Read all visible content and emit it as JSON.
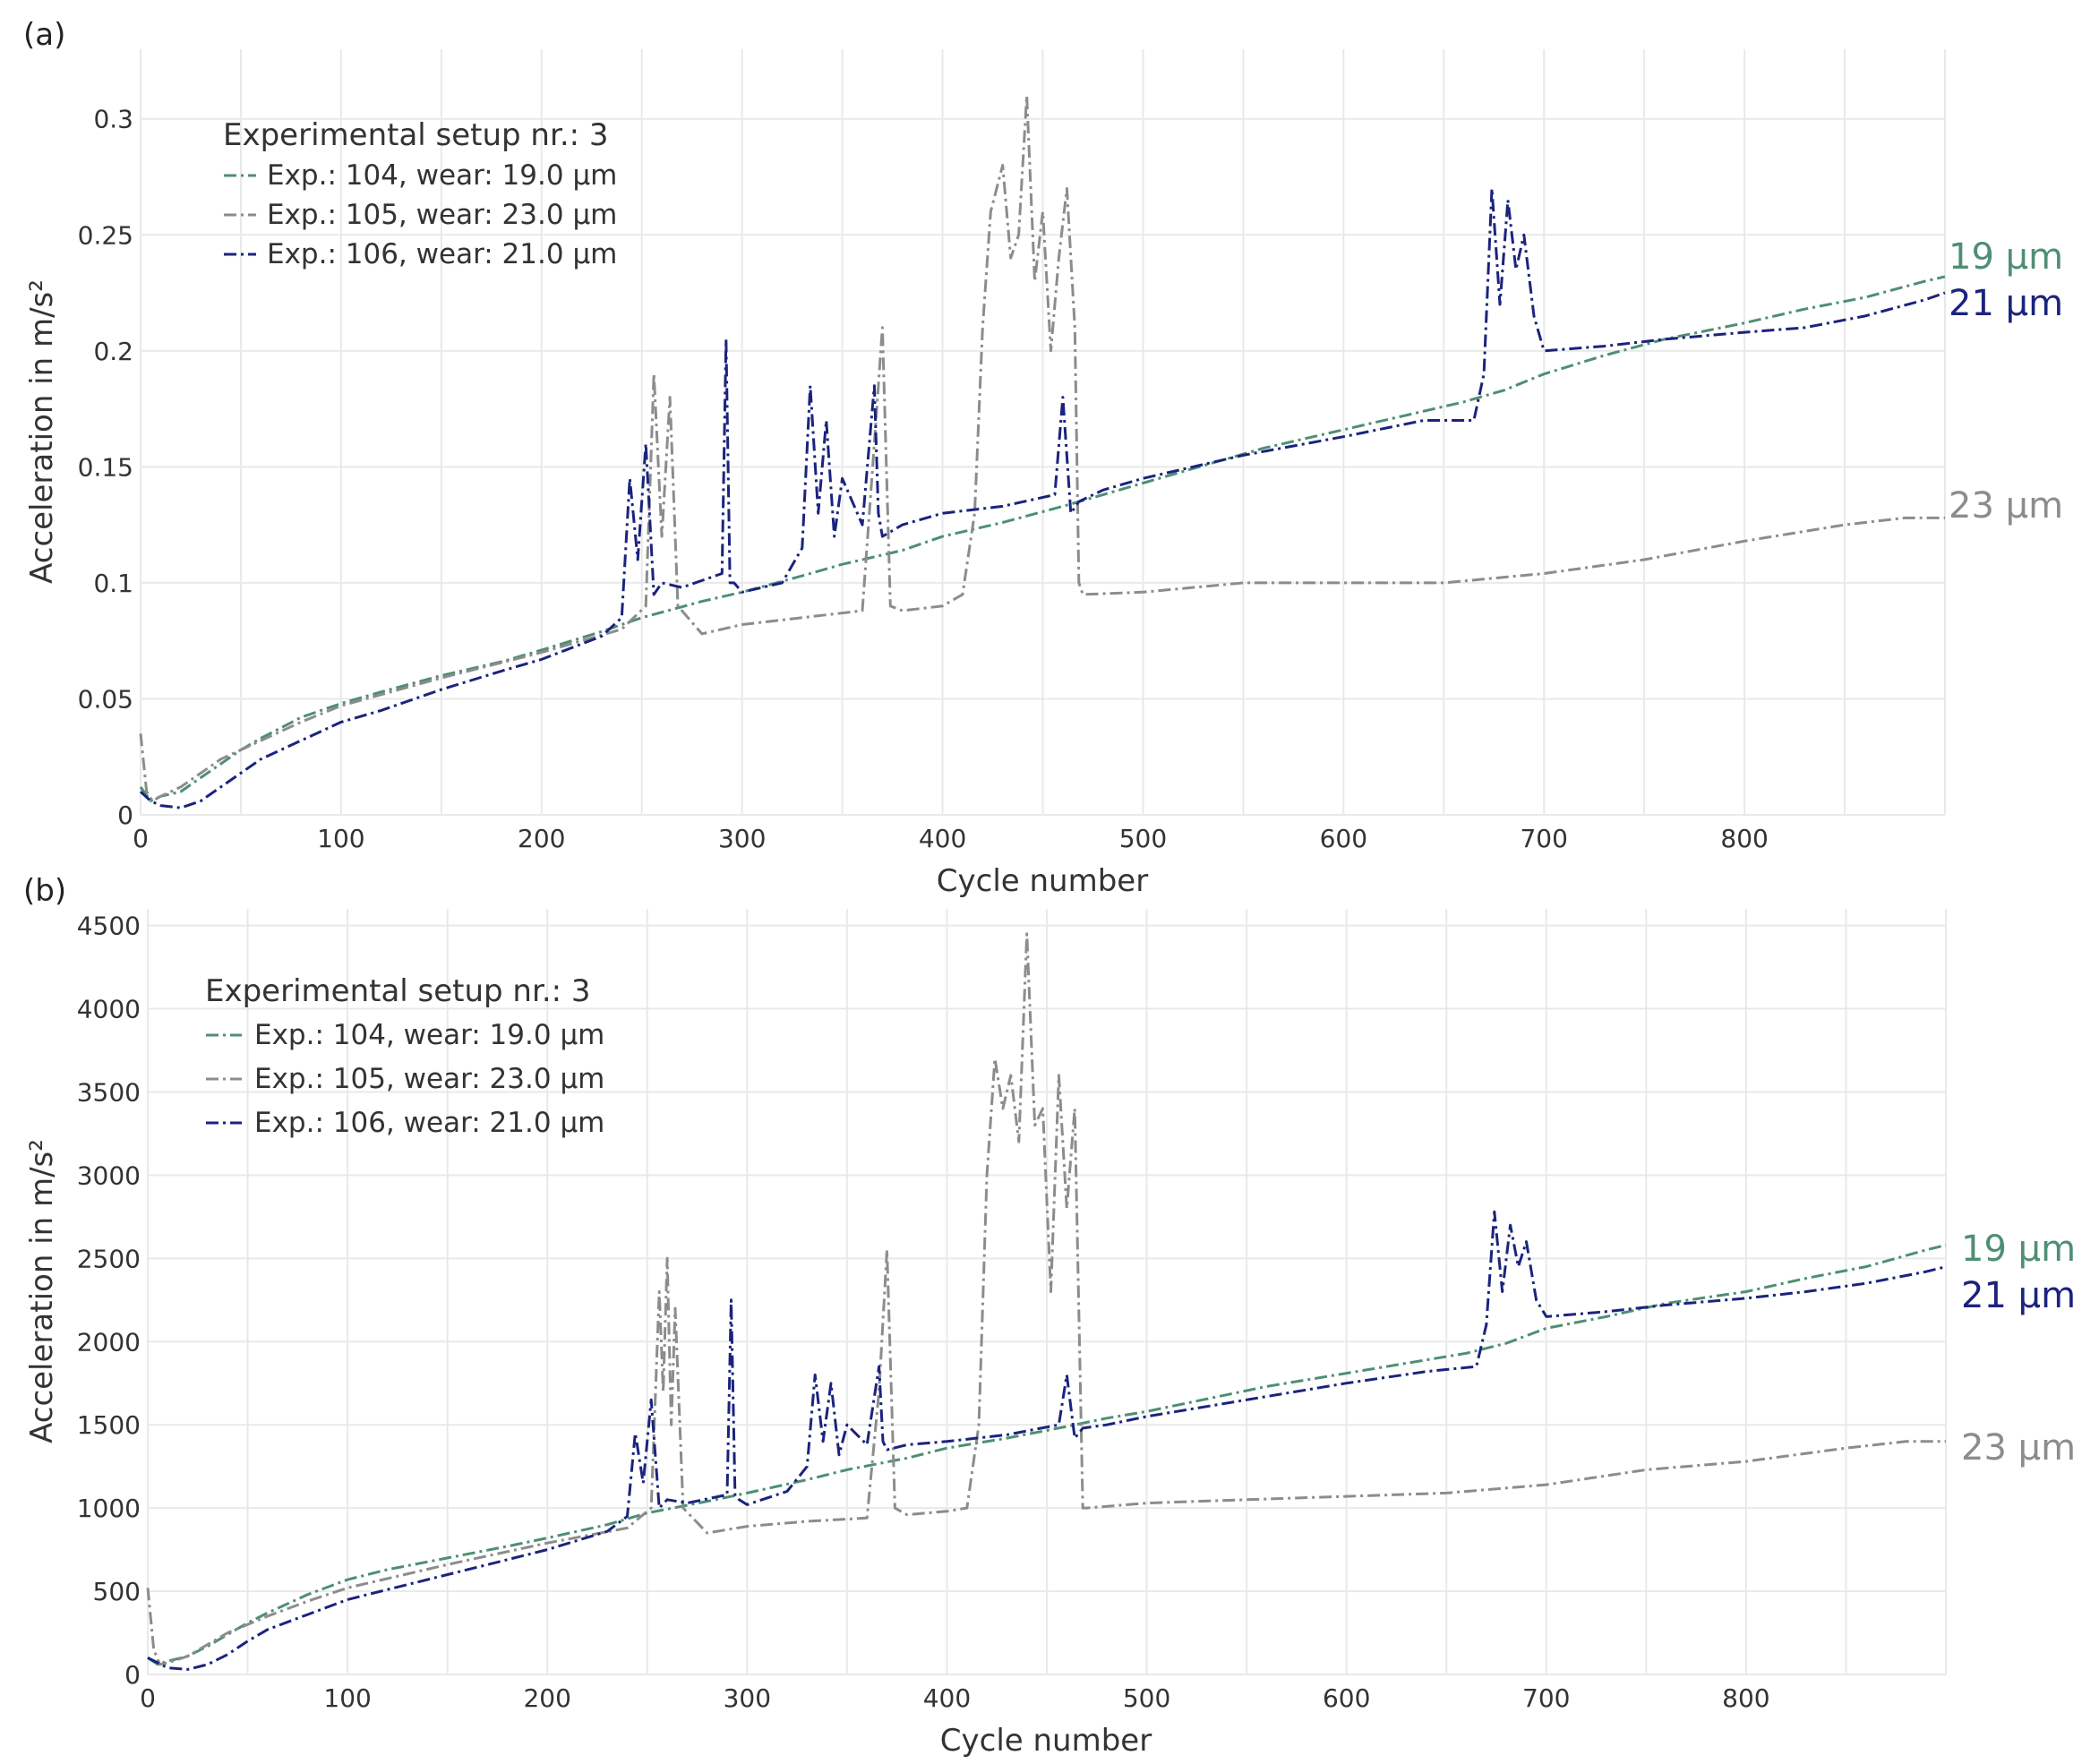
{
  "chart_data": [
    {
      "type": "line",
      "panel_label": "(a)",
      "xlabel": "Cycle number",
      "ylabel": "Acceleration in m/s²",
      "xlim": [
        0,
        900
      ],
      "ylim": [
        0,
        0.33
      ],
      "x_ticks": [
        0,
        100,
        200,
        300,
        400,
        500,
        600,
        700,
        800
      ],
      "x_tick_labels": [
        "0",
        "100",
        "200",
        "300",
        "400",
        "500",
        "600",
        "700",
        "800"
      ],
      "y_ticks": [
        0,
        0.05,
        0.1,
        0.15,
        0.2,
        0.25,
        0.3
      ],
      "y_tick_labels": [
        "0",
        "0.05",
        "0.1",
        "0.15",
        "0.2",
        "0.25",
        "0.3"
      ],
      "legend": {
        "title": "Experimental setup nr.: 3",
        "position": "top-left",
        "entries": [
          "Exp.: 104, wear: 19.0 μm",
          "Exp.: 105, wear: 23.0 μm",
          "Exp.: 106, wear: 21.0 μm"
        ]
      },
      "end_labels": [
        "19 μm",
        "21 μm",
        "23 μm"
      ],
      "series": [
        {
          "name": "Exp.: 104, wear: 19.0 μm",
          "color": "#4e8f73",
          "x": [
            0,
            5,
            10,
            20,
            30,
            40,
            50,
            60,
            80,
            100,
            120,
            150,
            180,
            200,
            230,
            250,
            280,
            300,
            330,
            350,
            380,
            400,
            430,
            460,
            480,
            500,
            540,
            560,
            600,
            630,
            660,
            680,
            700,
            730,
            760,
            800,
            830,
            860,
            890,
            900
          ],
          "y": [
            0.012,
            0.006,
            0.008,
            0.01,
            0.016,
            0.022,
            0.028,
            0.033,
            0.042,
            0.048,
            0.053,
            0.06,
            0.066,
            0.071,
            0.079,
            0.085,
            0.092,
            0.096,
            0.103,
            0.108,
            0.114,
            0.12,
            0.126,
            0.133,
            0.138,
            0.143,
            0.153,
            0.158,
            0.166,
            0.172,
            0.178,
            0.183,
            0.19,
            0.198,
            0.205,
            0.212,
            0.218,
            0.223,
            0.23,
            0.232
          ]
        },
        {
          "name": "Exp.: 105, wear: 23.0 μm",
          "color": "#8c8c8c",
          "x": [
            0,
            3,
            6,
            10,
            20,
            30,
            40,
            60,
            80,
            100,
            150,
            200,
            240,
            252,
            256,
            260,
            264,
            268,
            280,
            300,
            330,
            360,
            366,
            370,
            374,
            380,
            400,
            410,
            416,
            420,
            424,
            430,
            434,
            438,
            442,
            446,
            450,
            454,
            458,
            462,
            466,
            468,
            470,
            500,
            550,
            600,
            650,
            700,
            750,
            800,
            850,
            880,
            900
          ],
          "y": [
            0.035,
            0.01,
            0.006,
            0.008,
            0.012,
            0.018,
            0.024,
            0.032,
            0.04,
            0.047,
            0.059,
            0.07,
            0.08,
            0.09,
            0.19,
            0.12,
            0.18,
            0.09,
            0.078,
            0.082,
            0.085,
            0.088,
            0.16,
            0.21,
            0.09,
            0.088,
            0.09,
            0.095,
            0.13,
            0.21,
            0.26,
            0.28,
            0.24,
            0.25,
            0.31,
            0.23,
            0.26,
            0.2,
            0.24,
            0.27,
            0.21,
            0.1,
            0.095,
            0.096,
            0.1,
            0.1,
            0.1,
            0.104,
            0.11,
            0.118,
            0.125,
            0.128,
            0.128
          ]
        },
        {
          "name": "Exp.: 106, wear: 21.0 μm",
          "color": "#1a237e",
          "x": [
            0,
            5,
            10,
            20,
            30,
            40,
            50,
            60,
            80,
            100,
            120,
            150,
            180,
            200,
            230,
            240,
            244,
            248,
            252,
            256,
            260,
            270,
            290,
            292,
            294,
            296,
            300,
            320,
            330,
            334,
            338,
            342,
            346,
            350,
            360,
            366,
            368,
            370,
            380,
            400,
            430,
            456,
            460,
            464,
            468,
            480,
            500,
            550,
            600,
            640,
            665,
            670,
            674,
            678,
            682,
            686,
            690,
            695,
            700,
            730,
            760,
            800,
            830,
            860,
            890,
            900
          ],
          "y": [
            0.01,
            0.006,
            0.004,
            0.003,
            0.006,
            0.012,
            0.018,
            0.024,
            0.032,
            0.04,
            0.045,
            0.054,
            0.062,
            0.067,
            0.077,
            0.085,
            0.145,
            0.11,
            0.16,
            0.095,
            0.1,
            0.098,
            0.104,
            0.205,
            0.1,
            0.1,
            0.096,
            0.1,
            0.115,
            0.185,
            0.13,
            0.17,
            0.12,
            0.145,
            0.125,
            0.185,
            0.13,
            0.12,
            0.125,
            0.13,
            0.133,
            0.138,
            0.18,
            0.13,
            0.135,
            0.14,
            0.145,
            0.155,
            0.163,
            0.17,
            0.17,
            0.19,
            0.27,
            0.22,
            0.265,
            0.235,
            0.25,
            0.215,
            0.2,
            0.202,
            0.205,
            0.208,
            0.21,
            0.215,
            0.222,
            0.225
          ]
        }
      ]
    },
    {
      "type": "line",
      "panel_label": "(b)",
      "xlabel": "Cycle number",
      "ylabel": "Acceleration in m/s²",
      "xlim": [
        0,
        900
      ],
      "ylim": [
        0,
        4600
      ],
      "x_ticks": [
        0,
        100,
        200,
        300,
        400,
        500,
        600,
        700,
        800
      ],
      "x_tick_labels": [
        "0",
        "100",
        "200",
        "300",
        "400",
        "500",
        "600",
        "700",
        "800"
      ],
      "y_ticks": [
        0,
        500,
        1000,
        1500,
        2000,
        2500,
        3000,
        3500,
        4000,
        4500
      ],
      "y_tick_labels": [
        "0",
        "500",
        "1000",
        "1500",
        "2000",
        "2500",
        "3000",
        "3500",
        "4000",
        "4500"
      ],
      "legend": {
        "title": "Experimental setup nr.: 3",
        "position": "top-left",
        "entries": [
          "Exp.: 104, wear: 19.0 μm",
          "Exp.: 105, wear: 23.0 μm",
          "Exp.: 106, wear: 21.0 μm"
        ]
      },
      "end_labels": [
        "19 μm",
        "21 μm",
        "23 μm"
      ],
      "series": [
        {
          "name": "Exp.: 104, wear: 19.0 μm",
          "color": "#4e8f73",
          "x": [
            0,
            5,
            10,
            20,
            30,
            40,
            50,
            60,
            80,
            100,
            120,
            150,
            180,
            200,
            230,
            250,
            280,
            300,
            330,
            350,
            380,
            400,
            430,
            460,
            480,
            500,
            540,
            560,
            600,
            630,
            660,
            680,
            700,
            730,
            760,
            800,
            830,
            860,
            890,
            900
          ],
          "y": [
            100,
            60,
            80,
            110,
            170,
            240,
            310,
            370,
            480,
            570,
            630,
            700,
            770,
            820,
            900,
            970,
            1040,
            1090,
            1170,
            1230,
            1300,
            1360,
            1420,
            1490,
            1540,
            1580,
            1680,
            1730,
            1810,
            1870,
            1930,
            1990,
            2080,
            2150,
            2230,
            2300,
            2380,
            2450,
            2550,
            2580
          ]
        },
        {
          "name": "Exp.: 105, wear: 23.0 μm",
          "color": "#8c8c8c",
          "x": [
            0,
            3,
            6,
            10,
            20,
            30,
            40,
            60,
            80,
            100,
            150,
            200,
            240,
            252,
            256,
            258,
            260,
            262,
            264,
            268,
            280,
            300,
            330,
            360,
            366,
            370,
            374,
            380,
            400,
            410,
            416,
            420,
            424,
            428,
            432,
            436,
            440,
            444,
            448,
            452,
            456,
            460,
            464,
            468,
            470,
            500,
            550,
            600,
            650,
            700,
            750,
            800,
            850,
            880,
            900
          ],
          "y": [
            520,
            150,
            60,
            70,
            110,
            180,
            250,
            350,
            440,
            520,
            660,
            790,
            880,
            1000,
            2300,
            1700,
            2500,
            1500,
            2200,
            1000,
            850,
            890,
            920,
            940,
            1700,
            2550,
            1000,
            960,
            980,
            1000,
            1500,
            3000,
            3700,
            3400,
            3600,
            3200,
            4450,
            3300,
            3400,
            2300,
            3600,
            2800,
            3400,
            1000,
            1000,
            1030,
            1050,
            1070,
            1090,
            1140,
            1230,
            1280,
            1360,
            1400,
            1400
          ]
        },
        {
          "name": "Exp.: 106, wear: 21.0 μm",
          "color": "#1a237e",
          "x": [
            0,
            5,
            10,
            20,
            30,
            40,
            50,
            60,
            80,
            100,
            120,
            150,
            180,
            200,
            230,
            240,
            244,
            248,
            252,
            256,
            260,
            270,
            290,
            292,
            294,
            296,
            300,
            320,
            330,
            334,
            338,
            342,
            346,
            350,
            360,
            366,
            368,
            370,
            380,
            400,
            430,
            456,
            460,
            464,
            468,
            480,
            500,
            550,
            600,
            640,
            665,
            670,
            674,
            678,
            682,
            686,
            690,
            695,
            700,
            730,
            760,
            800,
            830,
            860,
            890,
            900
          ],
          "y": [
            100,
            70,
            40,
            30,
            60,
            120,
            200,
            270,
            360,
            450,
            510,
            600,
            690,
            750,
            860,
            950,
            1450,
            1150,
            1650,
            1000,
            1050,
            1030,
            1080,
            2250,
            1070,
            1050,
            1020,
            1100,
            1250,
            1800,
            1400,
            1750,
            1320,
            1500,
            1380,
            1850,
            1400,
            1350,
            1380,
            1400,
            1440,
            1500,
            1800,
            1420,
            1480,
            1500,
            1550,
            1650,
            1750,
            1820,
            1850,
            2100,
            2780,
            2300,
            2700,
            2450,
            2600,
            2250,
            2150,
            2180,
            2220,
            2260,
            2300,
            2350,
            2420,
            2450
          ]
        }
      ]
    }
  ]
}
